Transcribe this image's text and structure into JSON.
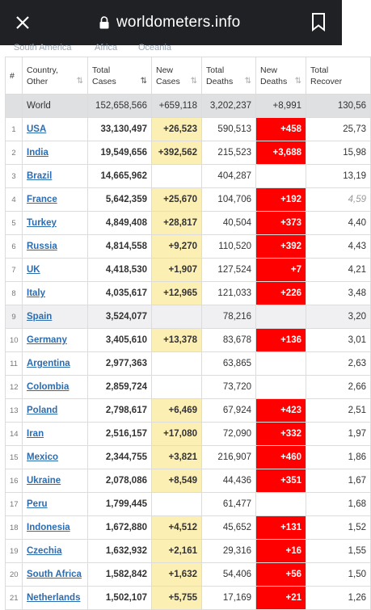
{
  "browser": {
    "url": "worldometers.info"
  },
  "regions": [
    "South America",
    "Africa",
    "Oceania"
  ],
  "headers": {
    "num": "#",
    "country": [
      "Country,",
      "Other"
    ],
    "total_cases": [
      "Total",
      "Cases"
    ],
    "new_cases": [
      "New",
      "Cases"
    ],
    "total_deaths": [
      "Total",
      "Deaths"
    ],
    "new_deaths": [
      "New",
      "Deaths"
    ],
    "total_recovered": [
      "Total",
      "Recover"
    ]
  },
  "world": {
    "country": "World",
    "total_cases": "152,658,566",
    "new_cases": "+659,118",
    "total_deaths": "3,202,237",
    "new_deaths": "+8,991",
    "total_recovered": "130,56"
  },
  "rows": [
    {
      "num": "1",
      "country": "USA",
      "total_cases": "33,130,497",
      "new_cases": "+26,523",
      "total_deaths": "590,513",
      "new_deaths": "+458",
      "total_recovered": "25,73"
    },
    {
      "num": "2",
      "country": "India",
      "total_cases": "19,549,656",
      "new_cases": "+392,562",
      "total_deaths": "215,523",
      "new_deaths": "+3,688",
      "total_recovered": "15,98"
    },
    {
      "num": "3",
      "country": "Brazil",
      "total_cases": "14,665,962",
      "new_cases": "",
      "total_deaths": "404,287",
      "new_deaths": "",
      "total_recovered": "13,19"
    },
    {
      "num": "4",
      "country": "France",
      "total_cases": "5,642,359",
      "new_cases": "+25,670",
      "total_deaths": "104,706",
      "new_deaths": "+192",
      "total_recovered": "4,59"
    },
    {
      "num": "5",
      "country": "Turkey",
      "total_cases": "4,849,408",
      "new_cases": "+28,817",
      "total_deaths": "40,504",
      "new_deaths": "+373",
      "total_recovered": "4,40"
    },
    {
      "num": "6",
      "country": "Russia",
      "total_cases": "4,814,558",
      "new_cases": "+9,270",
      "total_deaths": "110,520",
      "new_deaths": "+392",
      "total_recovered": "4,43"
    },
    {
      "num": "7",
      "country": "UK",
      "total_cases": "4,418,530",
      "new_cases": "+1,907",
      "total_deaths": "127,524",
      "new_deaths": "+7",
      "total_recovered": "4,21"
    },
    {
      "num": "8",
      "country": "Italy",
      "total_cases": "4,035,617",
      "new_cases": "+12,965",
      "total_deaths": "121,033",
      "new_deaths": "+226",
      "total_recovered": "3,48"
    },
    {
      "num": "9",
      "country": "Spain",
      "total_cases": "3,524,077",
      "new_cases": "",
      "total_deaths": "78,216",
      "new_deaths": "",
      "total_recovered": "3,20"
    },
    {
      "num": "10",
      "country": "Germany",
      "total_cases": "3,405,610",
      "new_cases": "+13,378",
      "total_deaths": "83,678",
      "new_deaths": "+136",
      "total_recovered": "3,01"
    },
    {
      "num": "11",
      "country": "Argentina",
      "total_cases": "2,977,363",
      "new_cases": "",
      "total_deaths": "63,865",
      "new_deaths": "",
      "total_recovered": "2,63"
    },
    {
      "num": "12",
      "country": "Colombia",
      "total_cases": "2,859,724",
      "new_cases": "",
      "total_deaths": "73,720",
      "new_deaths": "",
      "total_recovered": "2,66"
    },
    {
      "num": "13",
      "country": "Poland",
      "total_cases": "2,798,617",
      "new_cases": "+6,469",
      "total_deaths": "67,924",
      "new_deaths": "+423",
      "total_recovered": "2,51"
    },
    {
      "num": "14",
      "country": "Iran",
      "total_cases": "2,516,157",
      "new_cases": "+17,080",
      "total_deaths": "72,090",
      "new_deaths": "+332",
      "total_recovered": "1,97"
    },
    {
      "num": "15",
      "country": "Mexico",
      "total_cases": "2,344,755",
      "new_cases": "+3,821",
      "total_deaths": "216,907",
      "new_deaths": "+460",
      "total_recovered": "1,86"
    },
    {
      "num": "16",
      "country": "Ukraine",
      "total_cases": "2,078,086",
      "new_cases": "+8,549",
      "total_deaths": "44,436",
      "new_deaths": "+351",
      "total_recovered": "1,67"
    },
    {
      "num": "17",
      "country": "Peru",
      "total_cases": "1,799,445",
      "new_cases": "",
      "total_deaths": "61,477",
      "new_deaths": "",
      "total_recovered": "1,68"
    },
    {
      "num": "18",
      "country": "Indonesia",
      "total_cases": "1,672,880",
      "new_cases": "+4,512",
      "total_deaths": "45,652",
      "new_deaths": "+131",
      "total_recovered": "1,52"
    },
    {
      "num": "19",
      "country": "Czechia",
      "total_cases": "1,632,932",
      "new_cases": "+2,161",
      "total_deaths": "29,316",
      "new_deaths": "+16",
      "total_recovered": "1,55"
    },
    {
      "num": "20",
      "country": "South Africa",
      "total_cases": "1,582,842",
      "new_cases": "+1,632",
      "total_deaths": "54,406",
      "new_deaths": "+56",
      "total_recovered": "1,50"
    },
    {
      "num": "21",
      "country": "Netherlands",
      "total_cases": "1,502,107",
      "new_cases": "+5,755",
      "total_deaths": "17,169",
      "new_deaths": "+21",
      "total_recovered": "1,26"
    }
  ],
  "colors": {
    "new_cases_bg": "#fcefb4",
    "new_deaths_bg": "#ff0000",
    "link": "#2c6cb0",
    "topbar": "#202124"
  },
  "icons": {
    "close": "close-icon",
    "lock": "lock-icon",
    "bookmark": "bookmark-icon",
    "sort": "sort-icon"
  }
}
